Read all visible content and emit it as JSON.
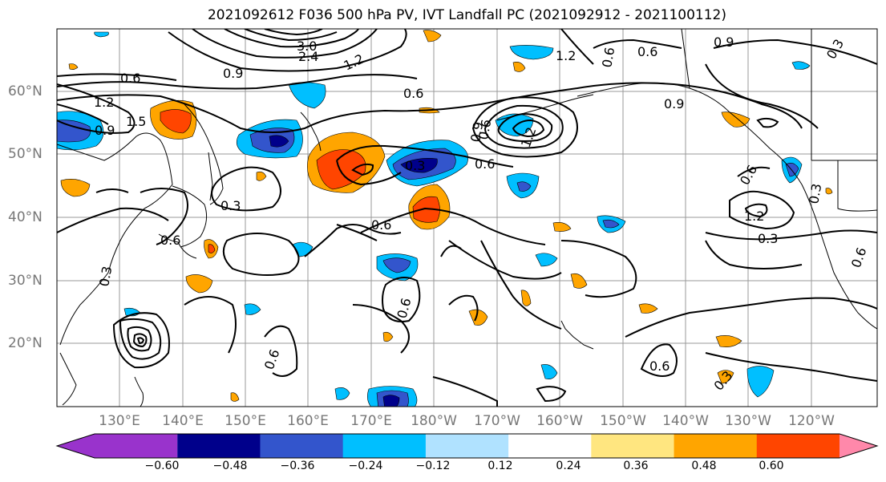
{
  "title": "2021092612 F036 500 hPa PV, IVT Landfall PC (2021092912 - 2021100112)",
  "lat_labels": [
    "60°N",
    "50°N",
    "40°N",
    "30°N",
    "20°N"
  ],
  "lon_labels": [
    "130°E",
    "140°E",
    "150°E",
    "160°E",
    "170°E",
    "180°W",
    "170°W",
    "160°W",
    "150°W",
    "140°W",
    "130°W",
    "120°W"
  ],
  "colorbar": {
    "tick_labels": [
      "−0.60",
      "−0.48",
      "−0.36",
      "−0.24",
      "−0.12",
      "0.12",
      "0.24",
      "0.36",
      "0.48",
      "0.60"
    ],
    "colors": [
      "#9933cc",
      "#00008b",
      "#3355cc",
      "#00bfff",
      "#b0e2ff",
      "#ffffff",
      "#ffe680",
      "#ffa500",
      "#ff4500",
      "#b22222",
      "#ff88aa"
    ]
  },
  "contour_labels": [
    "0.6",
    "1.2",
    "0.9",
    "1.5",
    "3.0",
    "2.4",
    "1.2",
    "0.6",
    "0.9",
    "1.2",
    "0.6",
    "0.3",
    "0.6",
    "0.6",
    "0.3",
    "0.6",
    "0.3",
    "0.6",
    "0.9",
    "1.2",
    "0.6",
    "0.9",
    "0.6",
    "0.9",
    "0.3",
    "0.3",
    "1.2",
    "0.3",
    "0.6",
    "0.6",
    "0.6",
    "0.6",
    "0.3"
  ]
}
